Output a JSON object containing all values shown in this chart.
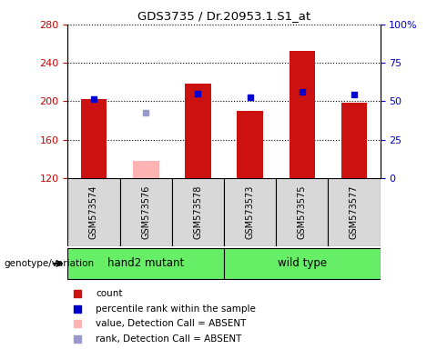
{
  "title": "GDS3735 / Dr.20953.1.S1_at",
  "samples": [
    "GSM573574",
    "GSM573576",
    "GSM573578",
    "GSM573573",
    "GSM573575",
    "GSM573577"
  ],
  "count_values": [
    202,
    null,
    218,
    190,
    252,
    198
  ],
  "count_absent_values": [
    null,
    138,
    null,
    null,
    null,
    null
  ],
  "percentile_values": [
    202,
    null,
    208,
    204,
    210,
    207
  ],
  "percentile_absent_values": [
    null,
    188,
    null,
    null,
    null,
    null
  ],
  "ylim_left": [
    120,
    280
  ],
  "ylim_right": [
    0,
    100
  ],
  "yticks_left": [
    120,
    160,
    200,
    240,
    280
  ],
  "yticks_right": [
    0,
    25,
    50,
    75,
    100
  ],
  "ytick_right_labels": [
    "0",
    "25",
    "50",
    "75",
    "100%"
  ],
  "left_axis_color": "#cc0000",
  "right_axis_color": "#0000cc",
  "red_bar_color": "#cc1111",
  "pink_bar_color": "#ffb3b3",
  "blue_square_color": "#0000cc",
  "light_blue_square_color": "#9999cc",
  "bg_color": "#d8d8d8",
  "plot_bg": "#ffffff",
  "green_color": "#66ee66",
  "genotype_label": "genotype/variation",
  "group_names": [
    "hand2 mutant",
    "wild type"
  ],
  "group_starts": [
    0,
    3
  ],
  "group_ends": [
    3,
    6
  ],
  "legend_items": [
    {
      "label": "count",
      "color": "#cc1111"
    },
    {
      "label": "percentile rank within the sample",
      "color": "#0000cc"
    },
    {
      "label": "value, Detection Call = ABSENT",
      "color": "#ffb3b3"
    },
    {
      "label": "rank, Detection Call = ABSENT",
      "color": "#9999cc"
    }
  ]
}
